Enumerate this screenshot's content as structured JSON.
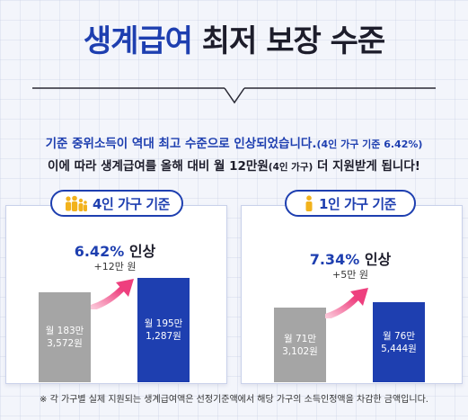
{
  "title": {
    "accent": "생계급여",
    "rest": "최저 보장 수준"
  },
  "headline": {
    "line1_main": "기준 중위소득이 역대 최고 수준으로 인상되었습니다.",
    "line1_paren": "(4인 가구 기준 6.42%)",
    "line2_a": "이에 따라 생계급여를 올해 대비 월 12만원",
    "line2_small": "(4인 가구)",
    "line2_b": " 더 지원받게 됩니다!"
  },
  "colors": {
    "accent": "#1e3fb0",
    "before_bar": "#a5a5a5",
    "arrow": "#f0568c"
  },
  "chart_data": [
    {
      "type": "bar",
      "title": "4인 가구 기준",
      "icon": "family-icon",
      "increase_pct": "6.42%",
      "increase_word": "인상",
      "increase_amount": "+12만 원",
      "categories": [
        "before",
        "after"
      ],
      "values": [
        1833572,
        1951287
      ],
      "bar_labels": [
        [
          "월 183만",
          "3,572원"
        ],
        [
          "월 195만",
          "1,287원"
        ]
      ]
    },
    {
      "type": "bar",
      "title": "1인 가구 기준",
      "icon": "person-icon",
      "increase_pct": "7.34%",
      "increase_word": "인상",
      "increase_amount": "+5만 원",
      "categories": [
        "before",
        "after"
      ],
      "values": [
        713102,
        765444
      ],
      "bar_labels": [
        [
          "월 71만",
          "3,102원"
        ],
        [
          "월 76만",
          "5,444원"
        ]
      ]
    }
  ],
  "footnote": "※ 각 가구별 실제 지원되는 생계급여액은 선정기준액에서 해당 가구의 소득인정액을 차감한 금액입니다."
}
